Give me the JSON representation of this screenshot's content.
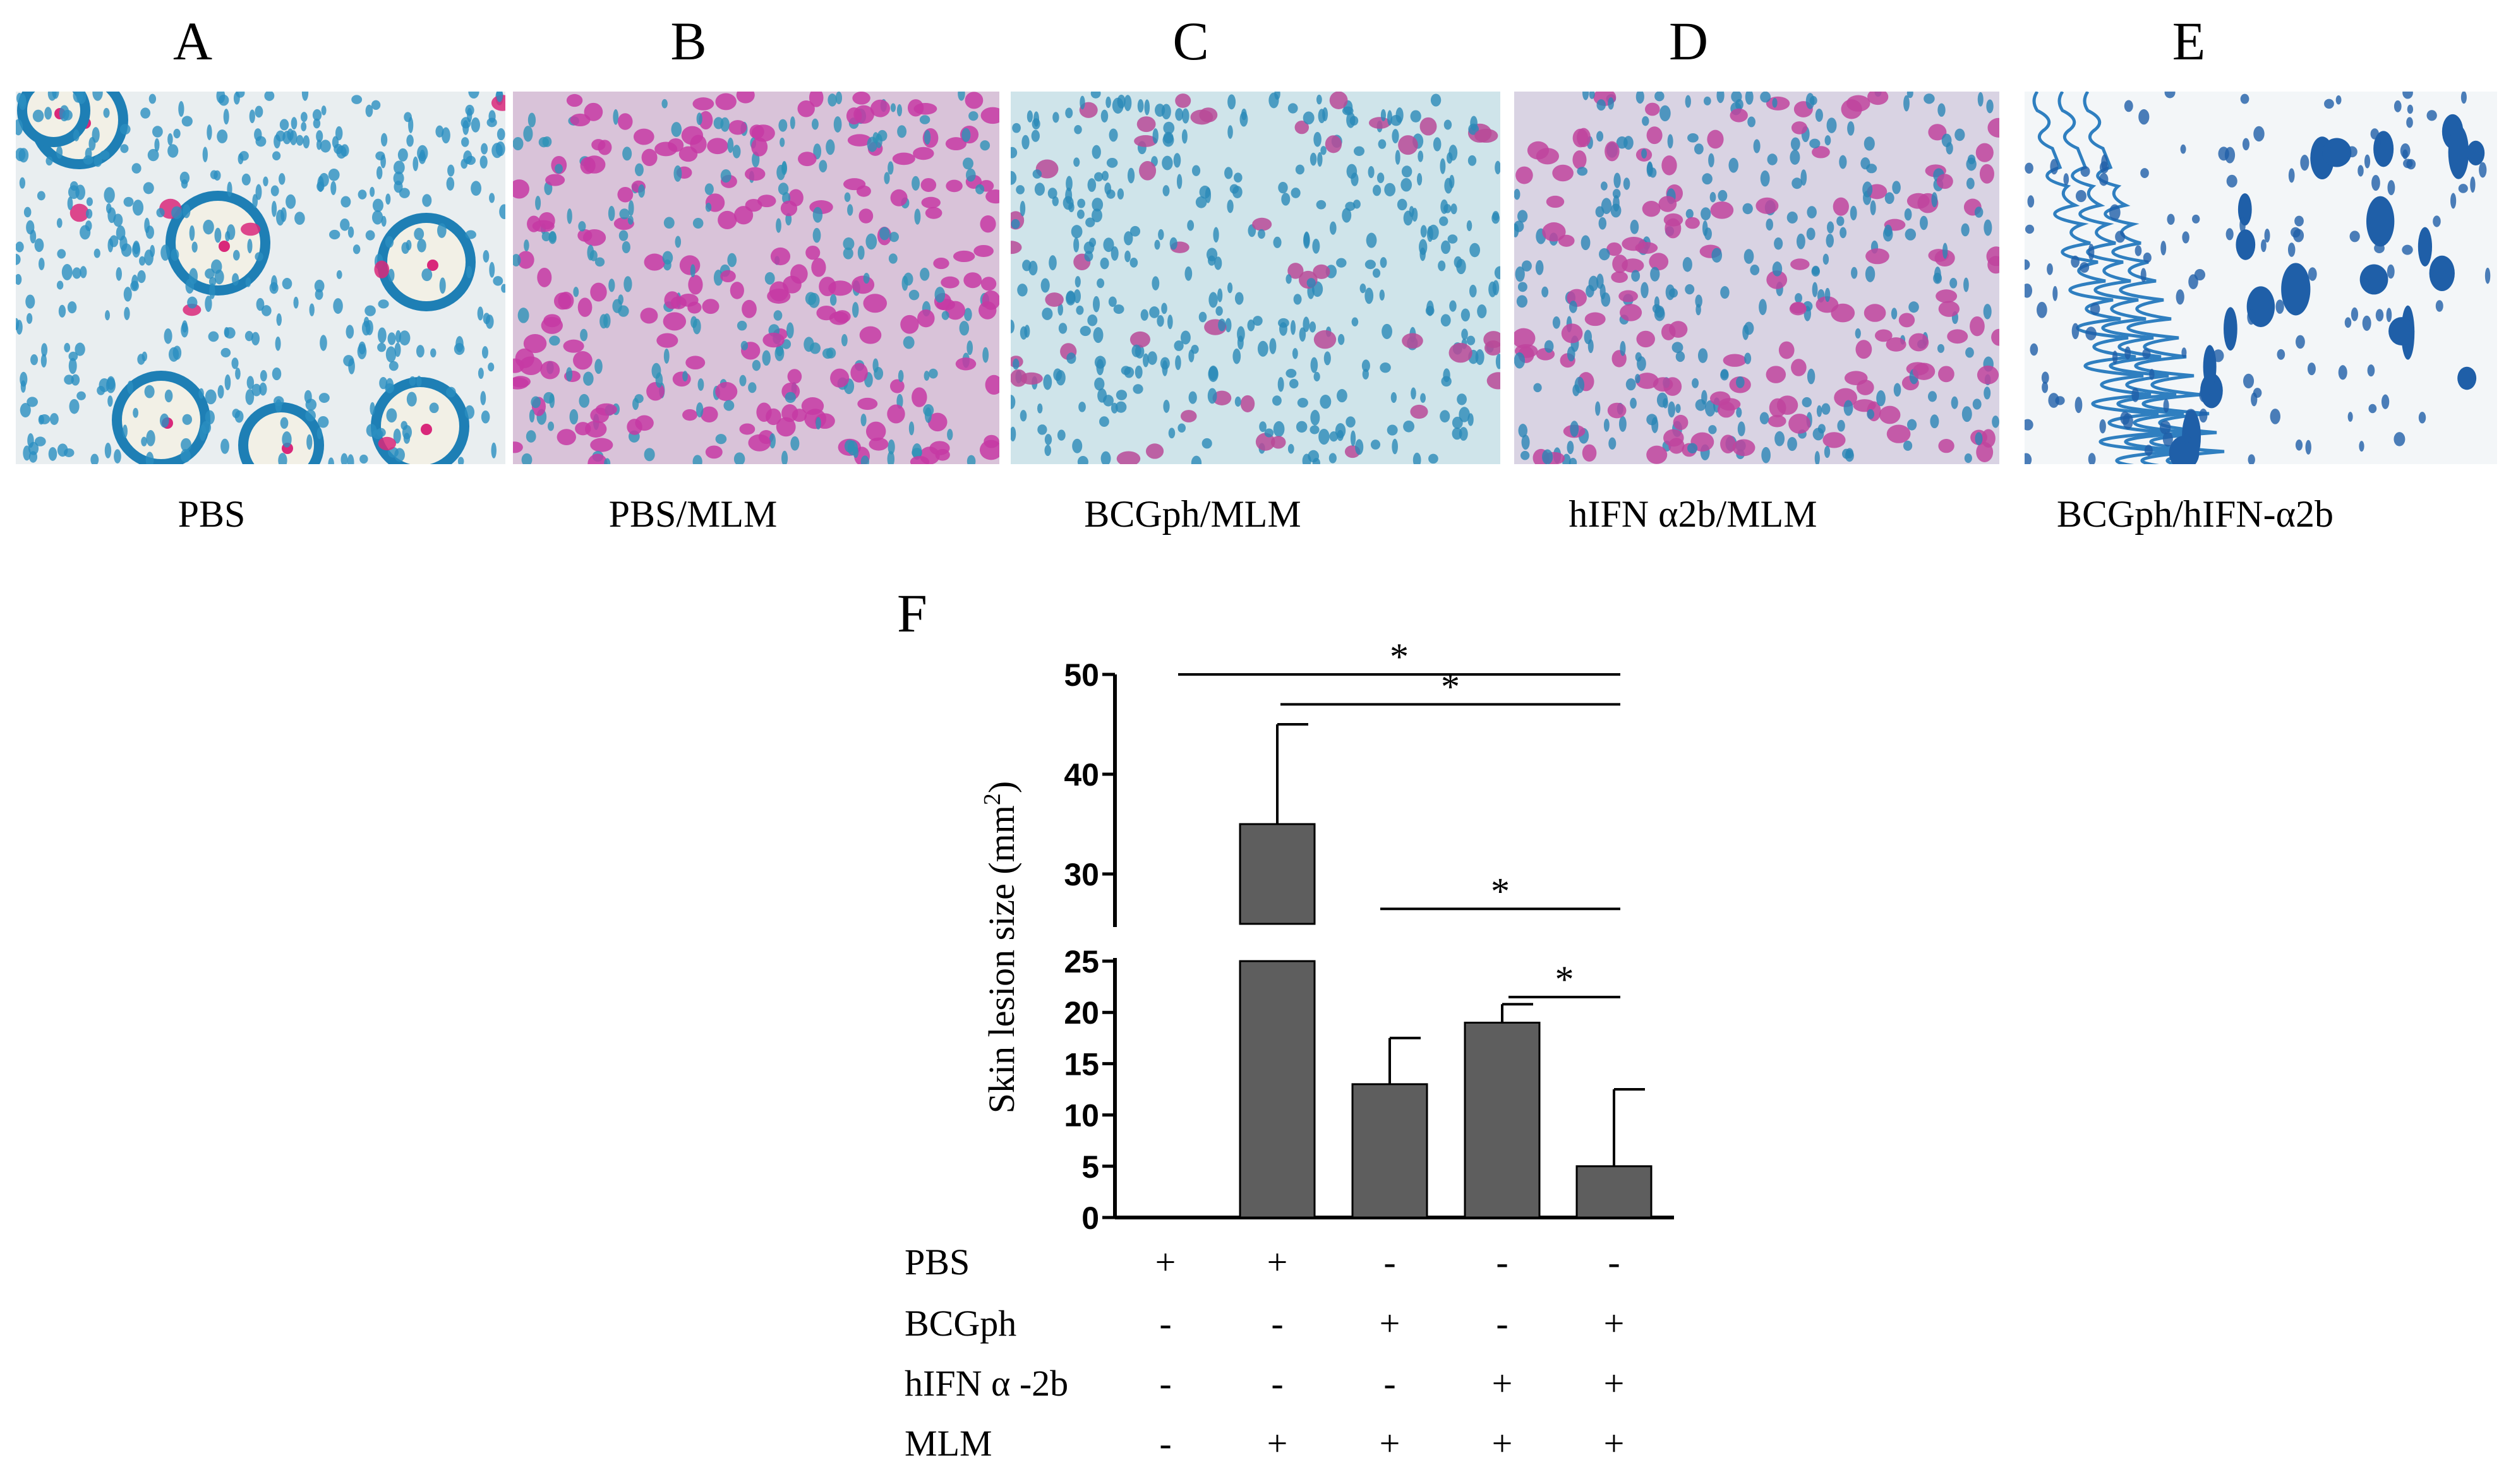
{
  "panels": [
    {
      "letter": "A",
      "caption": "PBS",
      "bg": "#e9eef0",
      "nucleus": "#2b8fc0",
      "stain": "#d9287a",
      "stain_density": 0.02
    },
    {
      "letter": "B",
      "caption": "PBS/MLM",
      "bg": "#d9c3d9",
      "nucleus": "#2d92b6",
      "stain": "#c53aa3",
      "stain_density": 0.45
    },
    {
      "letter": "C",
      "caption": "BCGph/MLM",
      "bg": "#cfe4ea",
      "nucleus": "#2a8ab8",
      "stain": "#b84a98",
      "stain_density": 0.12
    },
    {
      "letter": "D",
      "caption": "hIFN α2b/MLM",
      "bg": "#d9d3e3",
      "nucleus": "#2a86b5",
      "stain": "#c0449d",
      "stain_density": 0.3
    },
    {
      "letter": "E",
      "caption": "BCGph/hIFN-α2b",
      "bg": "#f3f6f8",
      "nucleus": "#1f5fa8",
      "stain": "#2f7fc0",
      "stain_density": 0.0
    }
  ],
  "chart_data": {
    "type": "bar",
    "panel_letter": "F",
    "ylabel": "Skin lesion size (mm²)",
    "ylabel_parts": {
      "main": "Skin lesion size (mm",
      "sup": "2",
      "end": ")"
    },
    "y_axis_break": {
      "lower": [
        0,
        25
      ],
      "upper": [
        25,
        50
      ]
    },
    "lower_ticks": [
      "0",
      "5",
      "10",
      "15",
      "20",
      "25"
    ],
    "upper_ticks": [
      "30",
      "40",
      "50"
    ],
    "lower_tick_values": [
      0,
      5,
      10,
      15,
      20,
      25
    ],
    "upper_tick_values": [
      30,
      40,
      50
    ],
    "categories": [
      "1",
      "2",
      "3",
      "4",
      "5"
    ],
    "values": [
      0,
      35,
      13,
      19,
      5
    ],
    "error_upper": [
      0,
      45,
      17.5,
      20.8,
      12.5
    ],
    "bar_color": "#5e5e5e",
    "treatment_rows": [
      {
        "label": "PBS",
        "marks": [
          "+",
          "+",
          "-",
          "-",
          "-"
        ]
      },
      {
        "label": "BCGph",
        "marks": [
          "-",
          "-",
          "+",
          "-",
          "+"
        ]
      },
      {
        "label": "hIFN α -2b",
        "marks": [
          "-",
          "-",
          "-",
          "+",
          "+"
        ]
      },
      {
        "label": "MLM",
        "marks": [
          "-",
          "+",
          "+",
          "+",
          "+"
        ]
      }
    ],
    "significance": [
      {
        "from": 0,
        "to": 4,
        "level": 50,
        "label": "*"
      },
      {
        "from": 1,
        "to": 4,
        "level": 47,
        "label": "*"
      },
      {
        "from": 2,
        "to": 4,
        "level": 26.5,
        "label": "*"
      },
      {
        "from": 3,
        "to": 4,
        "level": 21.5,
        "label": "*"
      }
    ]
  }
}
